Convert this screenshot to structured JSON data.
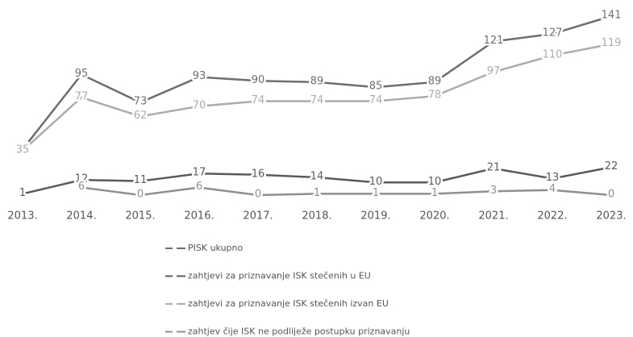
{
  "chart_data": {
    "type": "line",
    "categories": [
      "2013.",
      "2014.",
      "2015.",
      "2016.",
      "2017.",
      "2018.",
      "2019.",
      "2020.",
      "2021.",
      "2022.",
      "2023."
    ],
    "series": [
      {
        "name": "PISK ukupno",
        "color": "#6e6e6e",
        "values": [
          36,
          95,
          73,
          93,
          90,
          89,
          85,
          89,
          121,
          127,
          141
        ]
      },
      {
        "name": "zahtjevi za priznavanje ISK stečenih u EU",
        "color": "#5a5a5a",
        "values": [
          1,
          12,
          11,
          17,
          16,
          14,
          10,
          10,
          21,
          13,
          22
        ]
      },
      {
        "name": "zahtjevi za priznavanje ISK stečenih izvan EU",
        "color": "#acacac",
        "values": [
          35,
          77,
          62,
          70,
          74,
          74,
          74,
          78,
          97,
          110,
          119
        ]
      },
      {
        "name": "zahtjev čije ISK ne podliježe postupku priznavanju",
        "color": "#8f8f8f",
        "values": [
          null,
          6,
          0,
          6,
          0,
          1,
          1,
          1,
          3,
          4,
          0
        ]
      }
    ],
    "legend": "bottom"
  }
}
